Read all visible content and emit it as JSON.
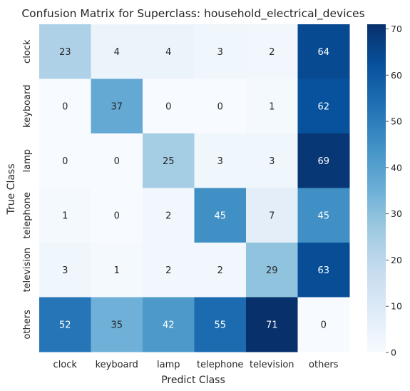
{
  "chart_data": {
    "type": "heatmap",
    "title": "Confusion Matrix for Superclass: household_electrical_devices",
    "xlabel": "Predict Class",
    "ylabel": "True Class",
    "x_categories": [
      "clock",
      "keyboard",
      "lamp",
      "telephone",
      "television",
      "others"
    ],
    "y_categories": [
      "clock",
      "keyboard",
      "lamp",
      "telephone",
      "television",
      "others"
    ],
    "values": [
      [
        23,
        4,
        4,
        3,
        2,
        64
      ],
      [
        0,
        37,
        0,
        0,
        1,
        62
      ],
      [
        0,
        0,
        25,
        3,
        3,
        69
      ],
      [
        1,
        0,
        2,
        45,
        7,
        45
      ],
      [
        3,
        1,
        2,
        2,
        29,
        63
      ],
      [
        52,
        35,
        42,
        55,
        71,
        0
      ]
    ],
    "colorbar": {
      "colormap": "Blues",
      "range": [
        0,
        71
      ],
      "ticks": [
        0,
        10,
        20,
        30,
        40,
        50,
        60,
        70
      ]
    },
    "annotations": "cell counts shown",
    "grid": false
  }
}
